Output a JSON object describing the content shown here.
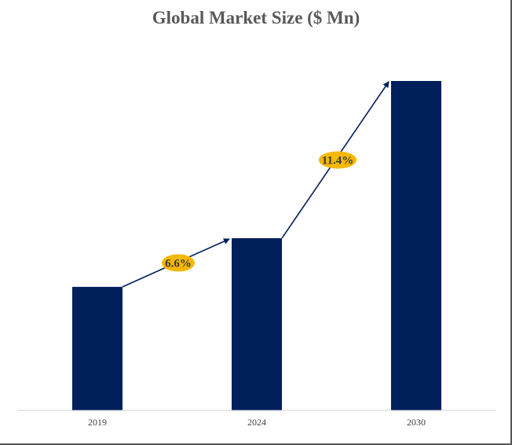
{
  "chart_data": {
    "type": "bar",
    "title": "Global Market Size ($ Mn)",
    "categories": [
      "2019",
      "2024",
      "2030"
    ],
    "values": [
      33,
      46,
      88
    ],
    "ylim": [
      0,
      88
    ],
    "grid": false,
    "legend": "none",
    "xlabel": "",
    "ylabel": "",
    "annotations": [
      {
        "text": "6.6%",
        "from": "2019",
        "to": "2024"
      },
      {
        "text": "11.4%",
        "from": "2024",
        "to": "2030"
      }
    ],
    "colors": {
      "bar": "#001f5b",
      "arrow": "#001f5b",
      "badge": "#f5b700",
      "axis": "#d0d0d0"
    }
  }
}
